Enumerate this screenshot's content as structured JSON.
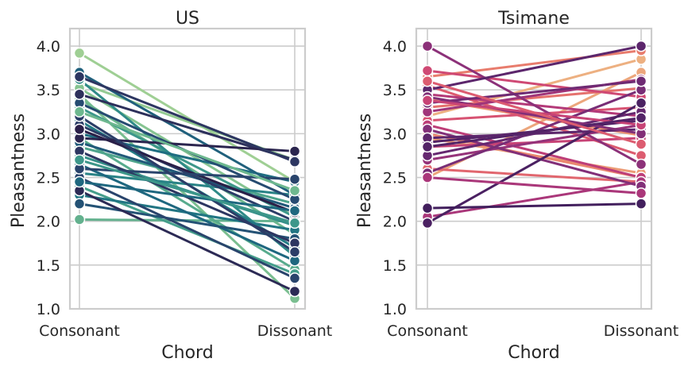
{
  "chart_data": [
    {
      "type": "line",
      "title": "US",
      "xlabel": "Chord",
      "ylabel": "Pleasantness",
      "categories": [
        "Consonant",
        "Dissonant"
      ],
      "ylim": [
        1.0,
        4.2
      ],
      "yticks": [
        "1.0",
        "1.5",
        "2.0",
        "2.5",
        "3.0",
        "3.5",
        "4.0"
      ],
      "grid": true,
      "palette": "crest",
      "series": [
        {
          "values": [
            3.92,
            2.45
          ],
          "color": "#9fcf94"
        },
        {
          "values": [
            3.58,
            2.7
          ],
          "color": "#93ca92"
        },
        {
          "values": [
            3.52,
            2.05
          ],
          "color": "#86c491"
        },
        {
          "values": [
            3.45,
            1.12
          ],
          "color": "#7abe90"
        },
        {
          "values": [
            3.4,
            1.85
          ],
          "color": "#6eb88f"
        },
        {
          "values": [
            2.02,
            2.0
          ],
          "color": "#63b18e"
        },
        {
          "values": [
            2.95,
            1.45
          ],
          "color": "#58ab8d"
        },
        {
          "values": [
            2.85,
            2.2
          ],
          "color": "#4ea48c"
        },
        {
          "values": [
            2.4,
            1.4
          ],
          "color": "#459e8b"
        },
        {
          "values": [
            3.3,
            2.05
          ],
          "color": "#3d978a"
        },
        {
          "values": [
            2.75,
            1.95
          ],
          "color": "#369089"
        },
        {
          "values": [
            3.62,
            1.6
          ],
          "color": "#2f8a88"
        },
        {
          "values": [
            2.55,
            2.3
          ],
          "color": "#298386"
        },
        {
          "values": [
            3.15,
            1.7
          ],
          "color": "#247c85"
        },
        {
          "values": [
            2.3,
            1.9
          ],
          "color": "#217583"
        },
        {
          "values": [
            3.0,
            2.45
          ],
          "color": "#1f6e81"
        },
        {
          "values": [
            2.65,
            1.55
          ],
          "color": "#1e677f"
        },
        {
          "values": [
            3.7,
            2.3
          ],
          "color": "#20607c"
        },
        {
          "values": [
            2.9,
            2.15
          ],
          "color": "#215979"
        },
        {
          "values": [
            2.2,
            1.8
          ],
          "color": "#245275"
        },
        {
          "values": [
            3.35,
            2.25
          ],
          "color": "#264b71"
        },
        {
          "values": [
            2.5,
            1.35
          ],
          "color": "#29446c"
        },
        {
          "values": [
            3.1,
            2.0
          ],
          "color": "#2b3d67"
        },
        {
          "values": [
            2.8,
            1.75
          ],
          "color": "#2d3661"
        },
        {
          "values": [
            3.45,
            2.7
          ],
          "color": "#2d305b"
        },
        {
          "values": [
            2.35,
            1.2
          ],
          "color": "#2c2a55"
        },
        {
          "values": [
            2.95,
            2.8
          ],
          "color": "#2b254e"
        },
        {
          "values": [
            3.05,
            2.1
          ],
          "color": "#2a1f48"
        },
        {
          "values": [
            2.6,
            2.48
          ],
          "color": "#29446c"
        },
        {
          "values": [
            3.2,
            1.65
          ],
          "color": "#2b3d67"
        },
        {
          "values": [
            2.45,
            2.12
          ],
          "color": "#1e677f"
        },
        {
          "values": [
            3.65,
            2.68
          ],
          "color": "#2d3661"
        },
        {
          "values": [
            2.7,
            1.98
          ],
          "color": "#3d978a"
        },
        {
          "values": [
            3.25,
            2.35
          ],
          "color": "#6eb88f"
        }
      ]
    },
    {
      "type": "line",
      "title": "Tsimane",
      "xlabel": "Chord",
      "ylabel": "Pleasantness",
      "categories": [
        "Consonant",
        "Dissonant"
      ],
      "ylim": [
        1.0,
        4.2
      ],
      "yticks": [
        "1.0",
        "1.5",
        "2.0",
        "2.5",
        "3.0",
        "3.5",
        "4.0"
      ],
      "grid": true,
      "palette": "flare",
      "series": [
        {
          "values": [
            3.2,
            3.85
          ],
          "color": "#edb081"
        },
        {
          "values": [
            2.5,
            3.7
          ],
          "color": "#eca67c"
        },
        {
          "values": [
            2.95,
            2.55
          ],
          "color": "#ec9c76"
        },
        {
          "values": [
            3.4,
            2.98
          ],
          "color": "#eb9272"
        },
        {
          "values": [
            3.0,
            2.5
          ],
          "color": "#ea876f"
        },
        {
          "values": [
            3.65,
            3.95
          ],
          "color": "#e87c6d"
        },
        {
          "values": [
            3.3,
            3.52
          ],
          "color": "#e5716d"
        },
        {
          "values": [
            2.6,
            2.45
          ],
          "color": "#e1666e"
        },
        {
          "values": [
            3.55,
            2.75
          ],
          "color": "#dc5c70"
        },
        {
          "values": [
            3.15,
            3.3
          ],
          "color": "#d75272"
        },
        {
          "values": [
            3.72,
            3.42
          ],
          "color": "#cf4974"
        },
        {
          "values": [
            2.85,
            2.95
          ],
          "color": "#c74376"
        },
        {
          "values": [
            3.1,
            2.5
          ],
          "color": "#bd3e78"
        },
        {
          "values": [
            3.45,
            3.2
          ],
          "color": "#b43a79"
        },
        {
          "values": [
            2.05,
            2.45
          ],
          "color": "#aa377a"
        },
        {
          "values": [
            3.25,
            3.62
          ],
          "color": "#a0357a"
        },
        {
          "values": [
            2.7,
            3.1
          ],
          "color": "#96337a"
        },
        {
          "values": [
            4.0,
            2.65
          ],
          "color": "#8c3179"
        },
        {
          "values": [
            3.05,
            2.4
          ],
          "color": "#822f78"
        },
        {
          "values": [
            2.55,
            3.5
          ],
          "color": "#782d76"
        },
        {
          "values": [
            3.35,
            3.6
          ],
          "color": "#6e2a73"
        },
        {
          "values": [
            2.75,
            3.25
          ],
          "color": "#652870"
        },
        {
          "values": [
            3.5,
            4.0
          ],
          "color": "#5c266c"
        },
        {
          "values": [
            2.9,
            3.15
          ],
          "color": "#532367"
        },
        {
          "values": [
            1.98,
            3.35
          ],
          "color": "#4b2162"
        },
        {
          "values": [
            2.15,
            2.2
          ],
          "color": "#421f5d"
        },
        {
          "values": [
            2.95,
            3.05
          ],
          "color": "#5c266c"
        },
        {
          "values": [
            3.42,
            3.0
          ],
          "color": "#822f78"
        },
        {
          "values": [
            2.5,
            2.32
          ],
          "color": "#aa377a"
        },
        {
          "values": [
            3.38,
            3.1
          ],
          "color": "#c74376"
        },
        {
          "values": [
            2.85,
            3.18
          ],
          "color": "#532367"
        },
        {
          "values": [
            3.6,
            2.88
          ],
          "color": "#dc5c70"
        }
      ]
    }
  ]
}
